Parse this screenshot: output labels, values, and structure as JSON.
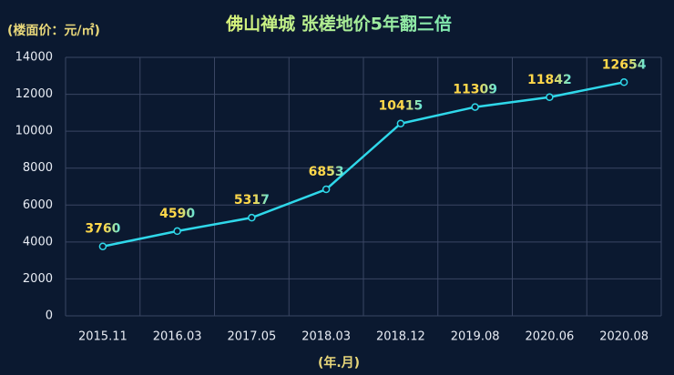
{
  "chart_data": {
    "type": "line",
    "title": "佛山禅城 张槎地价5年翻三倍",
    "y_label": "(楼面价：元/㎡)",
    "x_label": "(年.月)",
    "categories": [
      "2015.11",
      "2016.03",
      "2017.05",
      "2018.03",
      "2018.12",
      "2019.08",
      "2020.06",
      "2020.08"
    ],
    "values": [
      3760,
      4590,
      5317,
      6853,
      10415,
      11309,
      11842,
      12654
    ],
    "color": "#2fd8ea",
    "ylim": [
      0,
      14000
    ],
    "yticks": [
      0,
      2000,
      4000,
      6000,
      8000,
      10000,
      12000,
      14000
    ],
    "grid": true
  }
}
